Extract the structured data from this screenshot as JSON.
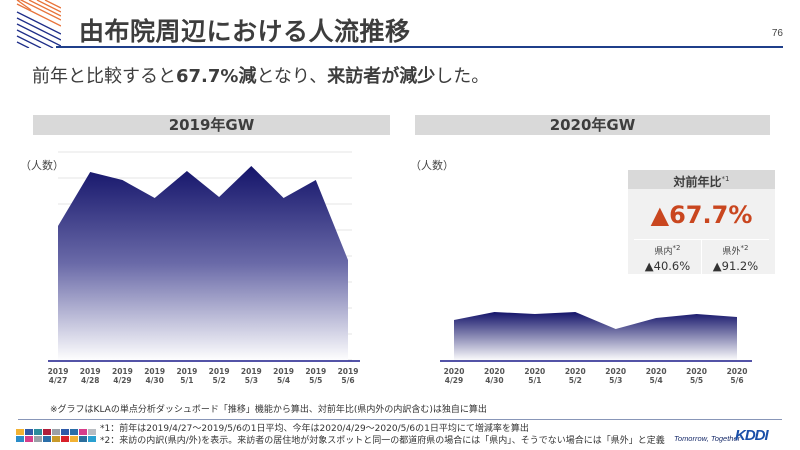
{
  "header": {
    "title": "由布院周辺における人流推移",
    "page_number": "76"
  },
  "subtitle": {
    "part1": "前年と比較すると",
    "bold1": "67.7%減",
    "part2": "となり、",
    "bold2": "来訪者が減少",
    "part3": "した。"
  },
  "panels": {
    "left": {
      "title": "2019年GW",
      "ylabel": "（人数）"
    },
    "right": {
      "title": "2020年GW",
      "ylabel": "（人数）"
    }
  },
  "yoy": {
    "title": "対前年比",
    "title_note": "*1",
    "main_value": "▲67.7%",
    "inside": {
      "label": "県内",
      "note": "*2",
      "value": "▲40.6%"
    },
    "outside": {
      "label": "県外",
      "note": "*2",
      "value": "▲91.2%"
    }
  },
  "colors": {
    "area_top": "#1a1a6e",
    "area_bottom": "#ffffff",
    "axis": "#1a1a8a",
    "accent_red": "#c9461f",
    "title_rule": "#1f3f8a",
    "panel_header": "#d9d9d9"
  },
  "chart_data": [
    {
      "type": "area",
      "title": "2019年GW",
      "ylabel": "人数",
      "xlabel": "",
      "grid": true,
      "note": "No numeric y-axis; values are relative heights (same scale across both charts)",
      "categories": [
        "2019 4/27",
        "2019 4/28",
        "2019 4/29",
        "2019 4/30",
        "2019 5/1",
        "2019 5/2",
        "2019 5/3",
        "2019 5/4",
        "2019 5/5",
        "2019 5/6"
      ],
      "x_labels": [
        [
          "2019",
          "4/27"
        ],
        [
          "2019",
          "4/28"
        ],
        [
          "2019",
          "4/29"
        ],
        [
          "2019",
          "4/30"
        ],
        [
          "2019",
          "5/1"
        ],
        [
          "2019",
          "5/2"
        ],
        [
          "2019",
          "5/3"
        ],
        [
          "2019",
          "5/4"
        ],
        [
          "2019",
          "5/5"
        ],
        [
          "2019",
          "5/6"
        ]
      ],
      "values": [
        135,
        189,
        181,
        163,
        190,
        164,
        195,
        163,
        181,
        101
      ],
      "ylim": [
        0,
        209
      ]
    },
    {
      "type": "area",
      "title": "2020年GW",
      "ylabel": "人数",
      "xlabel": "",
      "grid": false,
      "note": "Same relative scale as 2019 chart",
      "categories": [
        "2020 4/29",
        "2020 4/30",
        "2020 5/1",
        "2020 5/2",
        "2020 5/3",
        "2020 5/4",
        "2020 5/5",
        "2020 5/6"
      ],
      "x_labels": [
        [
          "2020",
          "4/29"
        ],
        [
          "2020",
          "4/30"
        ],
        [
          "2020",
          "5/1"
        ],
        [
          "2020",
          "5/2"
        ],
        [
          "2020",
          "5/3"
        ],
        [
          "2020",
          "5/4"
        ],
        [
          "2020",
          "5/5"
        ],
        [
          "2020",
          "5/6"
        ]
      ],
      "values": [
        41,
        49,
        47,
        49,
        32,
        43,
        47,
        44
      ],
      "ylim": [
        0,
        209
      ]
    }
  ],
  "footer": {
    "note": "※グラフはKLAの単点分析ダッシュボード「推移」機能から算出、対前年比(県内外の内訳含む)は独自に算出",
    "foot1": "*1：前年は2019/4/27～2019/5/6の1日平均、今年は2020/4/29～2020/5/6の1日平均にて増減率を算出",
    "foot2": "*2：来訪の内訳(県内/外)を表示。来訪者の居住地が対象スポットと同一の都道府県の場合には「県内」、そうでない場合には「県外」と定義",
    "tagline": "Tomorrow, Together",
    "logo": "KDDI"
  }
}
